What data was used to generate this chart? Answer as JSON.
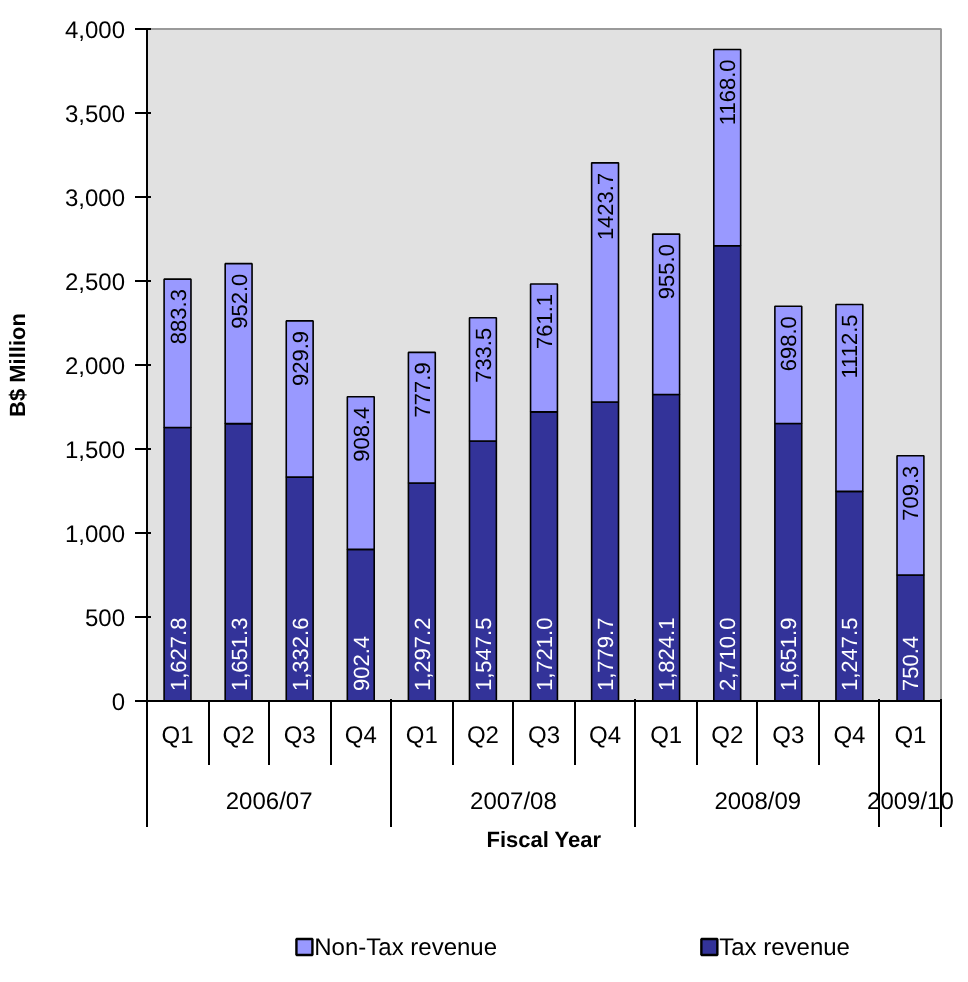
{
  "chart_data": {
    "type": "bar",
    "stacked": true,
    "xlabel": "Fiscal Year",
    "ylabel": "B$ Million",
    "categories": [
      "Q1",
      "Q2",
      "Q3",
      "Q4",
      "Q1",
      "Q2",
      "Q3",
      "Q4",
      "Q1",
      "Q2",
      "Q3",
      "Q4",
      "Q1"
    ],
    "annotations": [
      "2006/07",
      "2007/08",
      "2008/09",
      "2009/10"
    ],
    "ylim": [
      0,
      4000
    ],
    "yticks": [
      0,
      500,
      {
        "value": 1000,
        "label": "1,000"
      },
      {
        "value": 1500,
        "label": "1,500"
      },
      {
        "value": 2000,
        "label": "2,000"
      },
      {
        "value": 2500,
        "label": "2,500"
      },
      {
        "value": 3000,
        "label": "3,000"
      },
      {
        "value": 3500,
        "label": "3,500"
      },
      {
        "value": 4000,
        "label": "4,000"
      }
    ],
    "series": [
      {
        "name": "Tax revenue",
        "color": "#333399",
        "values": [
          1627.8,
          1651.3,
          1332.6,
          902.4,
          1297.2,
          1547.5,
          1721.0,
          1779.7,
          1824.1,
          2710.0,
          1651.9,
          1247.5,
          750.4
        ],
        "value_labels": [
          "1,627.8",
          "1,651.3",
          "1,332.6",
          "902.4",
          "1,297.2",
          "1,547.5",
          "1,721.0",
          "1,779.7",
          "1,824.1",
          "2,710.0",
          "1,651.9",
          "1,247.5",
          "750.4"
        ]
      },
      {
        "name": "Non-Tax revenue",
        "color": "#9999ff",
        "values": [
          883.3,
          952.0,
          929.9,
          908.4,
          777.9,
          733.5,
          761.1,
          1423.7,
          955.0,
          1168.0,
          698.0,
          1112.5,
          709.3
        ],
        "value_labels": [
          "883.3",
          "952.0",
          "929.9",
          "908.4",
          "777.9",
          "733.5",
          "761.1",
          "1423.7",
          "955.0",
          "1168.0",
          "698.0",
          "1112.5",
          "709.3"
        ]
      }
    ],
    "legend": "bottom"
  }
}
